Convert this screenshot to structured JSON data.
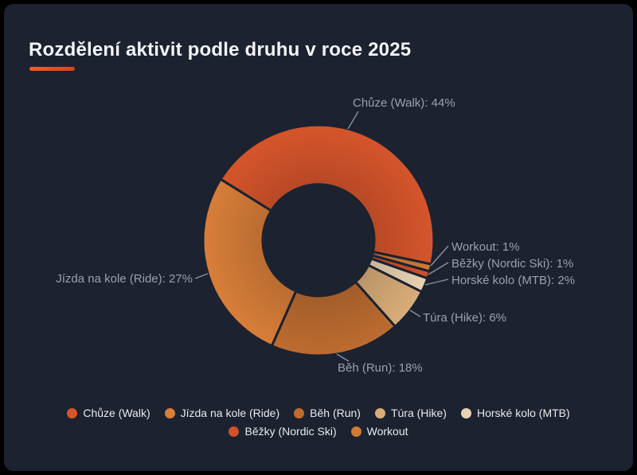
{
  "page": {
    "background": "#1c2230",
    "frame_color": "#000000",
    "accent_bar_color": "#e2532a",
    "callout_text_color": "#99a1ad",
    "legend_text_color": "#e7e9ec"
  },
  "chart_data": {
    "type": "pie",
    "donut": true,
    "title": "Rozdělení aktivit podle druhu v roce 2025",
    "legend_position": "bottom",
    "series": [
      {
        "label": "Chůze (Walk)",
        "value": 44,
        "callout": "Chůze (Walk): 44%",
        "color": "#d6552b"
      },
      {
        "label": "Jízda na kole (Ride)",
        "value": 27,
        "callout": "Jízda na kole (Ride): 27%",
        "color": "#d87e39"
      },
      {
        "label": "Běh (Run)",
        "value": 18,
        "callout": "Běh (Run): 18%",
        "color": "#bd6c30"
      },
      {
        "label": "Túra (Hike)",
        "value": 6,
        "callout": "Túra (Hike): 6%",
        "color": "#d9ad79"
      },
      {
        "label": "Horské kolo (MTB)",
        "value": 2,
        "callout": "Horské kolo (MTB): 2%",
        "color": "#e8d2b2"
      },
      {
        "label": "Běžky (Nordic Ski)",
        "value": 1,
        "callout": "Běžky (Nordic Ski): 1%",
        "color": "#d0512a"
      },
      {
        "label": "Workout",
        "value": 1,
        "callout": "Workout: 1%",
        "color": "#cf7a35"
      }
    ]
  }
}
